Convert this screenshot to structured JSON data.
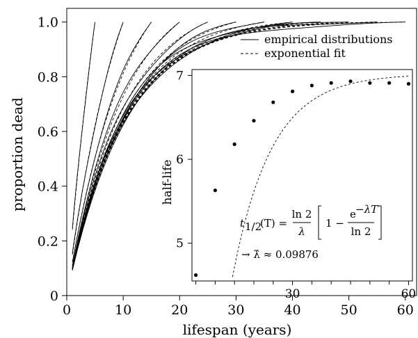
{
  "chart_data": [
    {
      "type": "line",
      "title": "",
      "xlabel": "lifespan (years)",
      "ylabel": "proportion dead",
      "xlim": [
        0,
        62
      ],
      "ylim": [
        0,
        1.05
      ],
      "xticks": [
        0,
        10,
        20,
        30,
        40,
        50,
        60
      ],
      "yticks": [
        0,
        0.2,
        0.4,
        0.6,
        0.8,
        1.0
      ],
      "xtick_labels": [
        "0",
        "10",
        "20",
        "30",
        "40",
        "50",
        "60"
      ],
      "ytick_labels": [
        "0",
        "0.2",
        "0.4",
        "0.6",
        "0.8",
        "1.0"
      ],
      "grid": false,
      "legend_position": "top-right",
      "series": [
        {
          "name": "empirical distributions",
          "style": "solid"
        },
        {
          "name": "exponential fit",
          "style": "dashed"
        }
      ],
      "lambda": 0.09876,
      "truncation_T": [
        5,
        10,
        15,
        20,
        25,
        30,
        35,
        40,
        45,
        50,
        55,
        60
      ],
      "x_start": 1
    },
    {
      "type": "scatter",
      "title": "",
      "xlabel": "",
      "ylabel": "half-life",
      "xlim": [
        4,
        61
      ],
      "ylim": [
        4.55,
        7.07
      ],
      "xticks": [
        30,
        60
      ],
      "yticks": [
        5,
        6,
        7
      ],
      "xtick_labels": [
        "30",
        "60"
      ],
      "ytick_labels": [
        "5",
        "6",
        "7"
      ],
      "points": {
        "x": [
          5,
          10,
          15,
          20,
          25,
          30,
          35,
          40,
          45,
          50,
          55,
          60
        ],
        "y": [
          4.62,
          5.63,
          6.18,
          6.46,
          6.68,
          6.81,
          6.88,
          6.91,
          6.93,
          6.91,
          6.91,
          6.9
        ]
      },
      "fit_curve": "dashed",
      "formula": {
        "lhs": "t",
        "lhs_sub": "1/2",
        "lhs_arg": "(T) =",
        "num": "ln 2",
        "den": "λ",
        "one_minus": "1 −",
        "exp_base": "e",
        "exp_power": "−λT",
        "exp_den": "ln 2",
        "result": "→ λ̂ ≈ 0.09876"
      }
    }
  ]
}
